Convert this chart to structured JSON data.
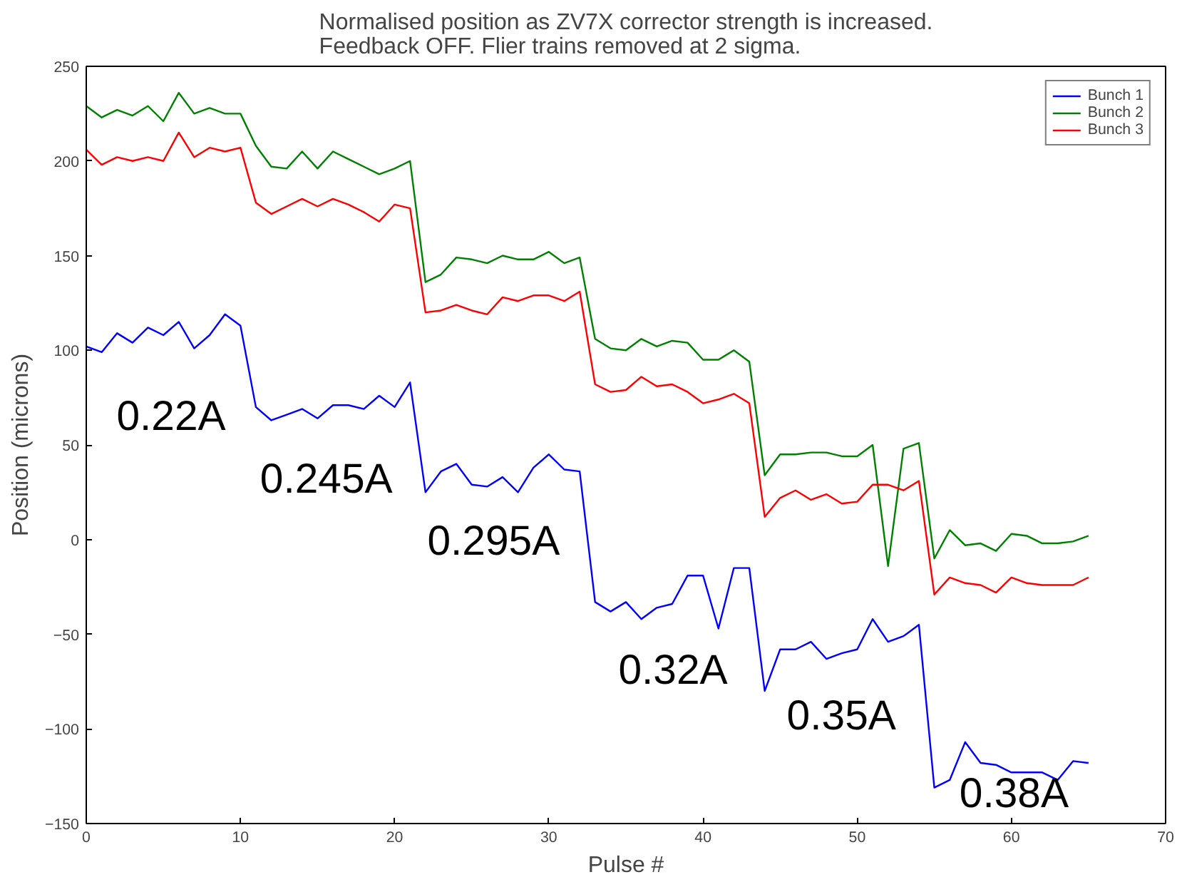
{
  "chart_data": {
    "type": "line",
    "title": "Normalised position as ZV7X corrector strength is increased.\nFeedback OFF.  Flier trains removed at 2 sigma.",
    "xlabel": "Pulse #",
    "ylabel": "Position (microns)",
    "x": [
      0,
      1,
      2,
      3,
      4,
      5,
      6,
      7,
      8,
      9,
      10,
      11,
      12,
      13,
      14,
      15,
      16,
      17,
      18,
      19,
      20,
      21,
      22,
      23,
      24,
      25,
      26,
      27,
      28,
      29,
      30,
      31,
      32,
      33,
      34,
      35,
      36,
      37,
      38,
      39,
      40,
      41,
      42,
      43,
      44,
      45,
      46,
      47,
      48,
      49,
      50,
      51,
      52,
      53,
      54,
      55,
      56,
      57,
      58,
      59,
      60,
      61,
      62,
      63,
      64,
      65
    ],
    "series": [
      {
        "name": "Bunch 1",
        "color": "#0000ff",
        "values": [
          102,
          99,
          109,
          104,
          112,
          108,
          115,
          101,
          108,
          119,
          113,
          70,
          63,
          66,
          69,
          64,
          71,
          71,
          69,
          76,
          70,
          83,
          25,
          36,
          40,
          29,
          28,
          33,
          25,
          38,
          45,
          37,
          36,
          -33,
          -38,
          -33,
          -42,
          -36,
          -34,
          -19,
          -19,
          -47,
          -15,
          -15,
          -80,
          -58,
          -58,
          -54,
          -63,
          -60,
          -58,
          -42,
          -54,
          -51,
          -45,
          -131,
          -127,
          -107,
          -118,
          -119,
          -123,
          -123,
          -123,
          -127,
          -117,
          -118
        ]
      },
      {
        "name": "Bunch 2",
        "color": "#008000",
        "values": [
          229,
          223,
          227,
          224,
          229,
          221,
          236,
          225,
          228,
          225,
          225,
          208,
          197,
          196,
          205,
          196,
          205,
          201,
          197,
          193,
          196,
          200,
          136,
          140,
          149,
          148,
          146,
          150,
          148,
          148,
          152,
          146,
          149,
          106,
          101,
          100,
          106,
          102,
          105,
          104,
          95,
          95,
          100,
          94,
          34,
          45,
          45,
          46,
          46,
          44,
          44,
          50,
          -14,
          48,
          51,
          -10,
          5,
          -3,
          -2,
          -6,
          3,
          2,
          -2,
          -2,
          -1,
          2
        ]
      },
      {
        "name": "Bunch 3",
        "color": "#ff0000",
        "values": [
          206,
          198,
          202,
          200,
          202,
          200,
          215,
          202,
          207,
          205,
          207,
          178,
          172,
          176,
          180,
          176,
          180,
          177,
          173,
          168,
          177,
          175,
          120,
          121,
          124,
          121,
          119,
          128,
          126,
          129,
          129,
          126,
          131,
          82,
          78,
          79,
          86,
          81,
          82,
          78,
          72,
          74,
          77,
          72,
          12,
          22,
          26,
          21,
          24,
          19,
          20,
          29,
          29,
          26,
          31,
          -29,
          -20,
          -23,
          -24,
          -28,
          -20,
          -23,
          -24,
          -24,
          -24,
          -20
        ]
      }
    ],
    "xlim": [
      0,
      70
    ],
    "xticks": [
      0,
      10,
      20,
      30,
      40,
      50,
      60,
      70
    ],
    "ylim": [
      -150,
      250
    ],
    "yticks": [
      -150,
      -100,
      -50,
      0,
      50,
      100,
      150,
      200,
      250
    ],
    "grid": false,
    "legend": "top right",
    "marker": "none",
    "line_style": "solid",
    "annotations": [
      "0.22A",
      "0.245A",
      "0.295A",
      "0.32A",
      "0.35A",
      "0.38A"
    ]
  }
}
